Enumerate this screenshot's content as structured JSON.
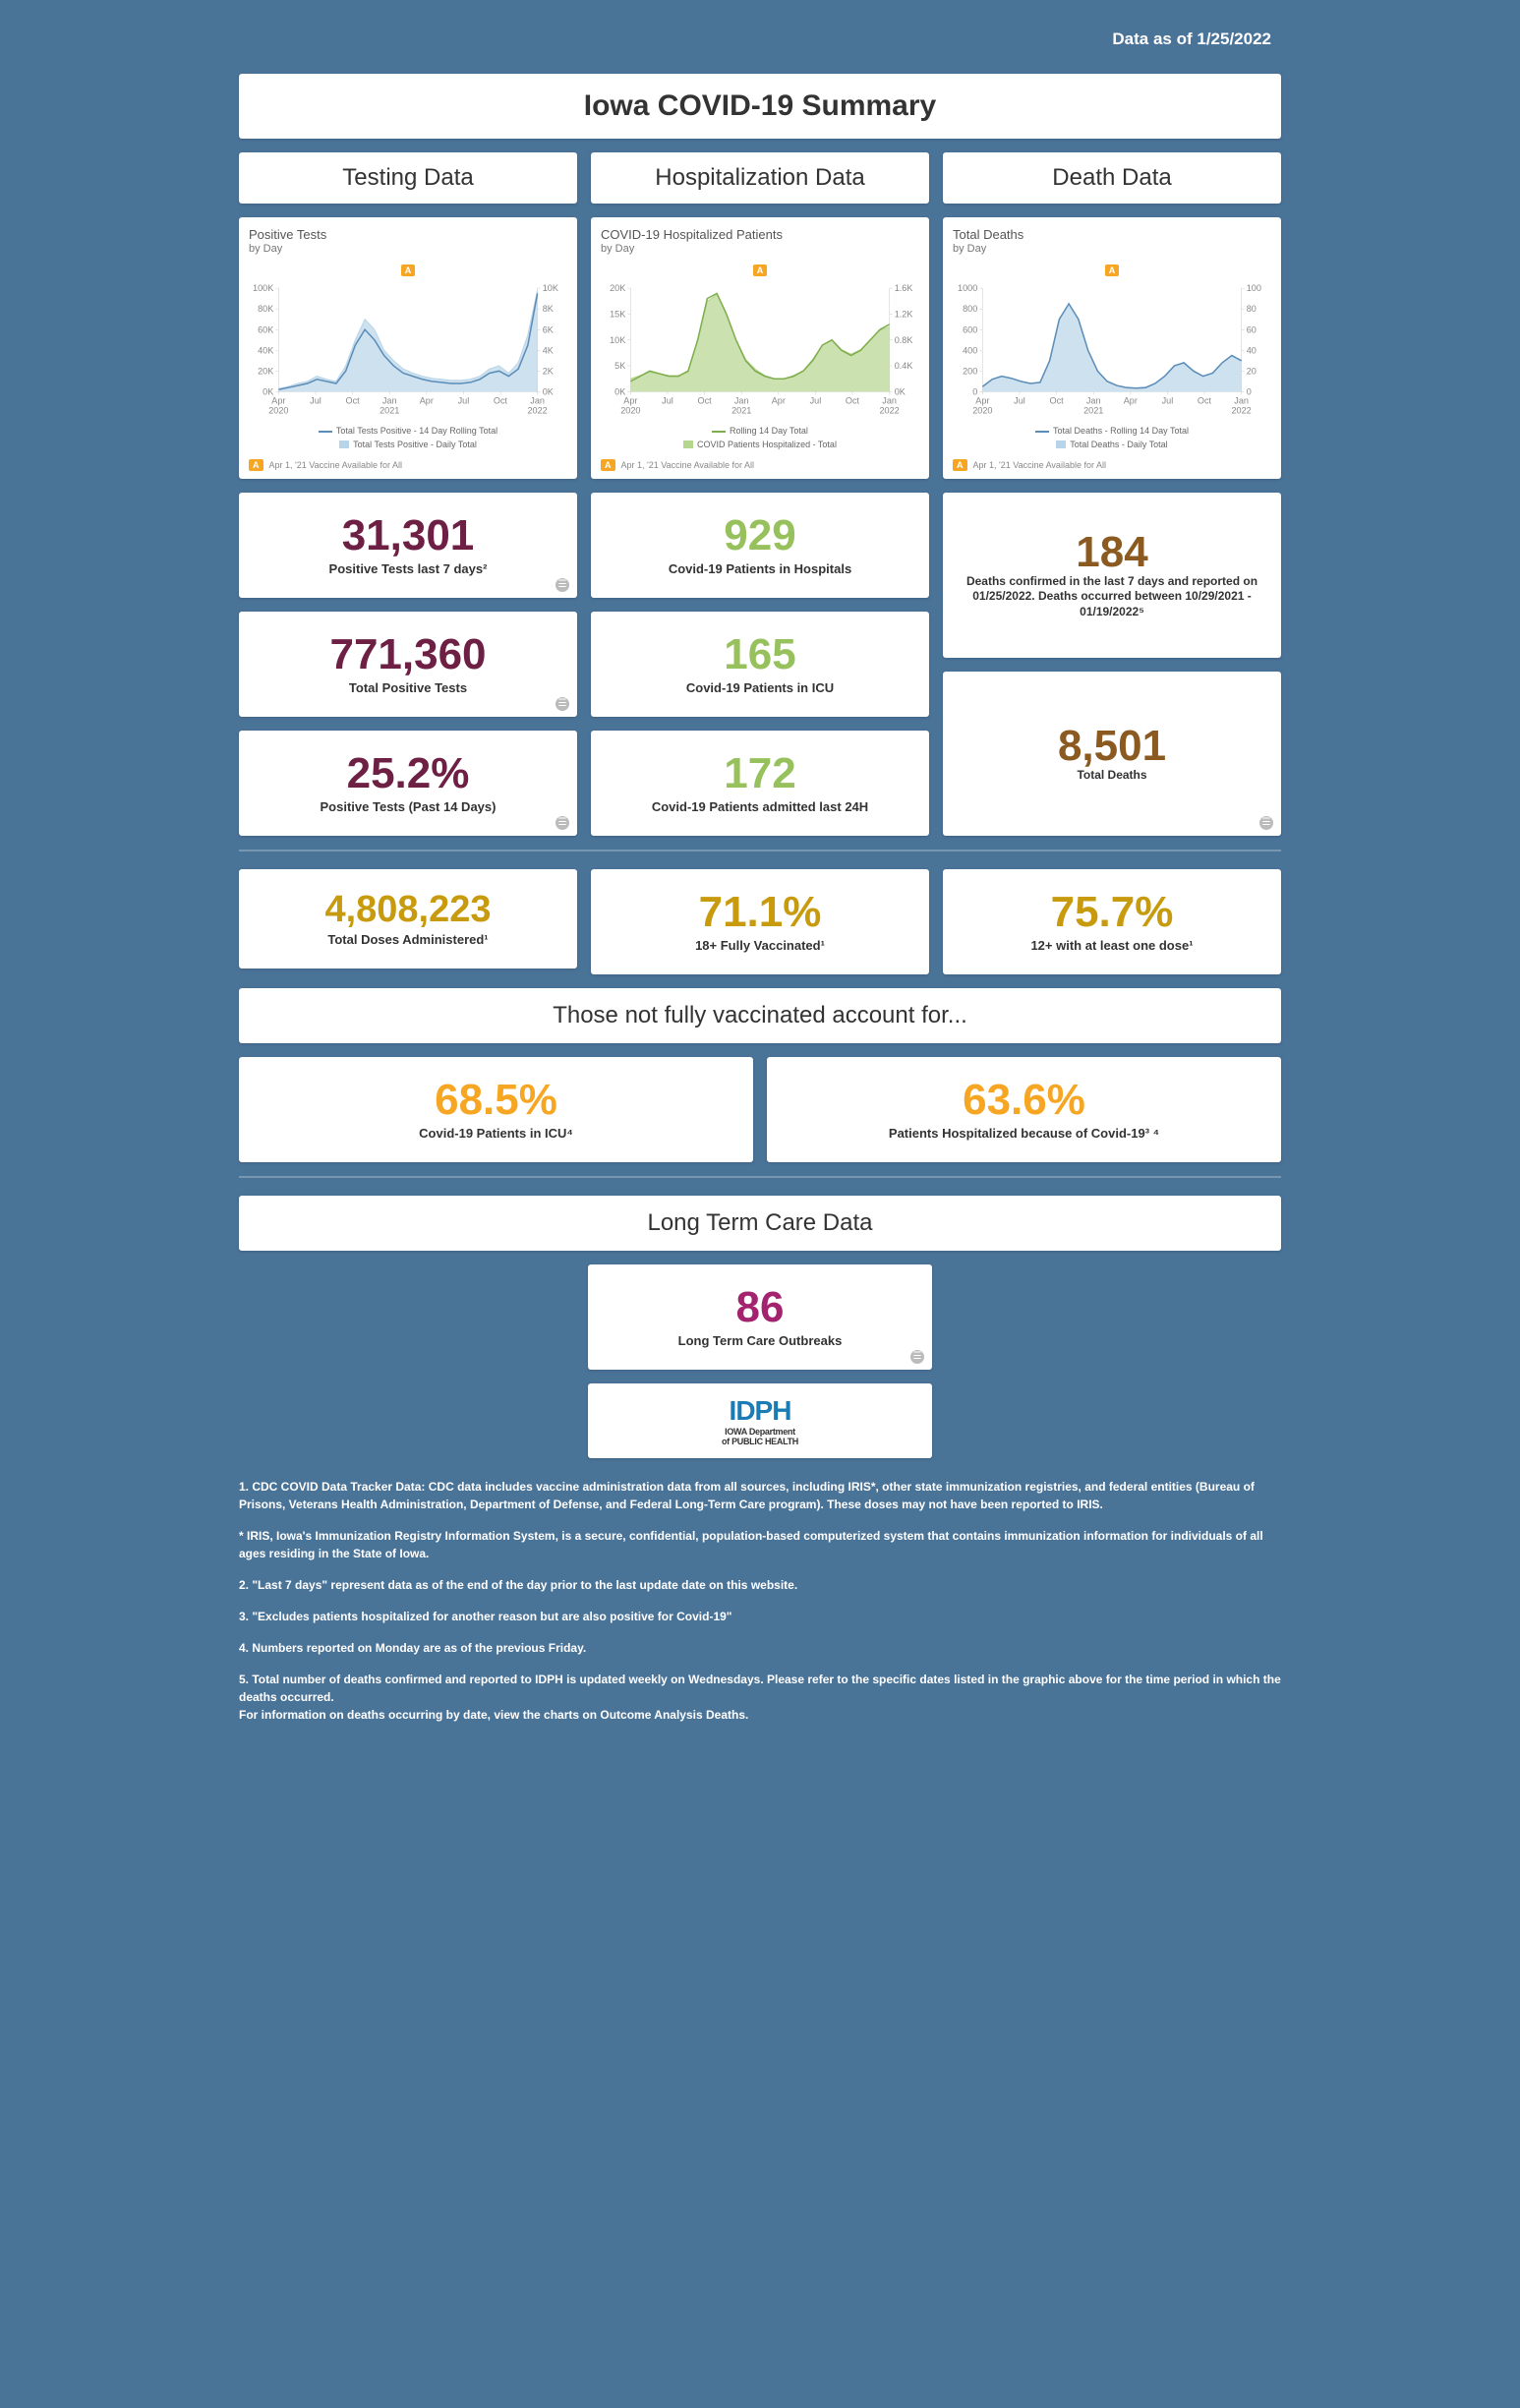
{
  "asof": "Data as of 1/25/2022",
  "main_title": "Iowa COVID-19 Summary",
  "annotation_label": "A",
  "annotation_text": "Apr 1, '21 Vaccine Available for All",
  "columns": {
    "testing": {
      "header": "Testing Data",
      "chart": {
        "title": "Positive Tests",
        "subtitle": "by Day",
        "y1_max": 100,
        "y1_ticks": [
          0,
          20,
          40,
          60,
          80,
          100
        ],
        "y1_suffix": "K",
        "y2_max": 10,
        "y2_ticks": [
          0,
          2,
          4,
          6,
          8,
          10
        ],
        "y2_suffix": "K",
        "x_labels": [
          "Apr 2020",
          "Jul",
          "Oct",
          "Jan 2021",
          "Apr",
          "Jul",
          "Oct",
          "Jan 2022"
        ],
        "series1_name": "Total Tests Positive - 14 Day Rolling Total",
        "series2_name": "Total Tests Positive - Daily Total",
        "series1_color": "#5b8db8",
        "series2_color": "#b8d4e8",
        "series1": [
          2,
          4,
          6,
          8,
          12,
          10,
          8,
          20,
          45,
          60,
          50,
          35,
          25,
          18,
          15,
          12,
          10,
          9,
          8,
          8,
          9,
          12,
          18,
          20,
          15,
          22,
          45,
          95
        ],
        "series2": [
          0.3,
          0.5,
          0.8,
          1,
          1.5,
          1.2,
          1,
          2.5,
          5,
          7,
          6,
          4,
          3,
          2.2,
          1.8,
          1.5,
          1.3,
          1.2,
          1.1,
          1.1,
          1.2,
          1.5,
          2.2,
          2.5,
          1.8,
          2.8,
          5.5,
          9.8
        ]
      },
      "stats": [
        {
          "v": "31,301",
          "l": "Positive Tests last 7 days²",
          "info": true
        },
        {
          "v": "771,360",
          "l": "Total Positive Tests",
          "info": true
        },
        {
          "v": "25.2%",
          "l": "Positive Tests (Past 14 Days)",
          "info": true
        }
      ]
    },
    "hosp": {
      "header": "Hospitalization Data",
      "chart": {
        "title": "COVID-19 Hospitalized Patients",
        "subtitle": "by Day",
        "y1_max": 20,
        "y1_ticks": [
          0,
          5,
          10,
          15,
          20
        ],
        "y1_suffix": "K",
        "y2_max": 1.6,
        "y2_ticks": [
          0,
          0.4,
          0.8,
          1.2,
          1.6
        ],
        "y2_suffix": "K",
        "x_labels": [
          "Apr 2020",
          "Jul",
          "Oct",
          "Jan 2021",
          "Apr",
          "Jul",
          "Oct",
          "Jan 2022"
        ],
        "series1_name": "Rolling 14 Day Total",
        "series2_name": "COVID Patients Hospitalized - Total",
        "series1_color": "#7fad4d",
        "series2_color": "#b5d68e",
        "series1": [
          2,
          3,
          4,
          3.5,
          3,
          3,
          4,
          10,
          18,
          19,
          15,
          10,
          6,
          4,
          3,
          2.5,
          2.5,
          3,
          4,
          6,
          9,
          10,
          8,
          7,
          8,
          10,
          12,
          13
        ],
        "series2": [
          0.2,
          0.25,
          0.3,
          0.28,
          0.25,
          0.25,
          0.3,
          0.8,
          1.4,
          1.5,
          1.2,
          0.8,
          0.5,
          0.35,
          0.25,
          0.2,
          0.2,
          0.25,
          0.32,
          0.5,
          0.72,
          0.8,
          0.65,
          0.58,
          0.65,
          0.8,
          0.95,
          1.0
        ]
      },
      "stats": [
        {
          "v": "929",
          "l": "Covid-19 Patients in Hospitals"
        },
        {
          "v": "165",
          "l": "Covid-19 Patients in ICU"
        },
        {
          "v": "172",
          "l": "Covid-19 Patients admitted last 24H"
        }
      ]
    },
    "death": {
      "header": "Death Data",
      "chart": {
        "title": "Total Deaths",
        "subtitle": "by Day",
        "y1_max": 1000,
        "y1_ticks": [
          0,
          200,
          400,
          600,
          800,
          1000
        ],
        "y1_suffix": "",
        "y2_max": 100,
        "y2_ticks": [
          0,
          20,
          40,
          60,
          80,
          100
        ],
        "y2_suffix": "",
        "x_labels": [
          "Apr 2020",
          "Jul",
          "Oct",
          "Jan 2021",
          "Apr",
          "Jul",
          "Oct",
          "Jan 2022"
        ],
        "series1_name": "Total Deaths - Rolling 14 Day Total",
        "series2_name": "Total Deaths - Daily Total",
        "series1_color": "#5b8db8",
        "series2_color": "#b8d4e8",
        "series1": [
          50,
          120,
          150,
          130,
          100,
          80,
          90,
          300,
          700,
          850,
          700,
          400,
          200,
          100,
          60,
          40,
          35,
          40,
          80,
          150,
          250,
          280,
          200,
          150,
          180,
          280,
          350,
          300
        ],
        "series2": [
          5,
          12,
          15,
          13,
          10,
          8,
          9,
          30,
          70,
          85,
          70,
          40,
          20,
          10,
          6,
          4,
          3.5,
          4,
          8,
          15,
          25,
          28,
          20,
          15,
          18,
          28,
          35,
          30
        ]
      },
      "stats": [
        {
          "v": "184",
          "l": "Deaths confirmed in the last 7 days and reported on 01/25/2022. Deaths occurred between 10/29/2021 - 01/19/2022⁵",
          "tall": true
        },
        {
          "v": "8,501",
          "l": "Total Deaths",
          "info": true,
          "tall": true
        }
      ]
    }
  },
  "vaccine_row": [
    {
      "v": "4,808,223",
      "l": "Total Doses Administered¹"
    },
    {
      "v": "71.1%",
      "l": "18+ Fully Vaccinated¹"
    },
    {
      "v": "75.7%",
      "l": "12+ with at least one dose¹"
    }
  ],
  "not_vacc_banner": "Those not fully vaccinated account for...",
  "not_vacc": [
    {
      "v": "68.5%",
      "l": "Covid-19 Patients in ICU⁴"
    },
    {
      "v": "63.6%",
      "l": "Patients Hospitalized because of Covid-19³ ⁴"
    }
  ],
  "ltc_header": "Long Term Care Data",
  "ltc_stat": {
    "v": "86",
    "l": "Long Term Care Outbreaks"
  },
  "idph": {
    "t": "IDPH",
    "b1": "IOWA Department",
    "b2": "of PUBLIC HEALTH"
  },
  "footnotes": [
    "1. CDC COVID Data Tracker Data: CDC data includes vaccine administration data from all sources, including IRIS*, other state immunization registries, and federal entities (Bureau of Prisons, Veterans Health Administration, Department of Defense, and Federal Long-Term Care program). These doses may not have been reported to IRIS.",
    "* IRIS, Iowa's Immunization Registry Information System, is a secure, confidential, population-based computerized system that contains immunization information for individuals of all ages residing in the State of Iowa.",
    "2.  \"Last 7 days\" represent data as of the end of the day prior to the last update date on this website.",
    "3. \"Excludes patients hospitalized for another reason but are also positive for Covid-19\"",
    "4. Numbers reported on Monday are as of the previous Friday.",
    "5. Total number of deaths confirmed and reported to IDPH is updated weekly on Wednesdays.  Please refer to the specific dates listed in the graphic above for the time period in which the deaths occurred.\n     For information on deaths occurring by date, view the charts on Outcome Analysis Deaths."
  ]
}
